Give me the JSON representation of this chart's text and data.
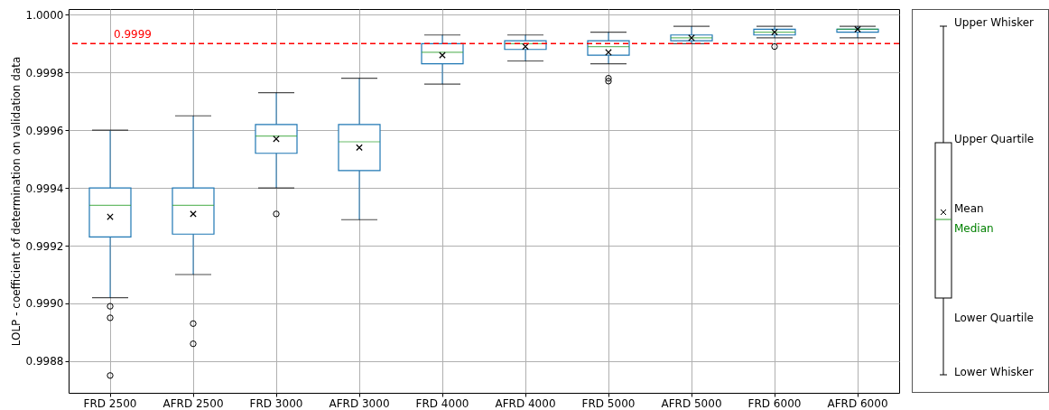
{
  "chart_data": {
    "type": "box",
    "ylabel": "LOLP - coefficient of determination on validation data",
    "categories": [
      "FRD 2500",
      "AFRD 2500",
      "FRD 3000",
      "AFRD 3000",
      "FRD 4000",
      "AFRD 4000",
      "FRD 5000",
      "AFRD 5000",
      "FRD 6000",
      "AFRD 6000"
    ],
    "series": [
      {
        "color": "#1f77b4",
        "boxes": [
          {
            "low": 0.99902,
            "q1": 0.99923,
            "median": 0.99934,
            "q3": 0.9994,
            "high": 0.9996,
            "mean": 0.9993,
            "outliers": [
              0.99899,
              0.99895,
              0.99875
            ]
          },
          {
            "low": 0.9991,
            "q1": 0.99924,
            "median": 0.99934,
            "q3": 0.9994,
            "high": 0.99965,
            "mean": 0.99931,
            "outliers": [
              0.99893,
              0.99886
            ]
          },
          {
            "low": 0.9994,
            "q1": 0.99952,
            "median": 0.99958,
            "q3": 0.99962,
            "high": 0.99973,
            "mean": 0.99957,
            "outliers": [
              0.99931
            ]
          },
          {
            "low": 0.99929,
            "q1": 0.99946,
            "median": 0.99956,
            "q3": 0.99962,
            "high": 0.99978,
            "mean": 0.99954
          },
          {
            "low": 0.99976,
            "q1": 0.99983,
            "median": 0.99987,
            "q3": 0.9999,
            "high": 0.99993,
            "mean": 0.99986
          },
          {
            "low": 0.99984,
            "q1": 0.99988,
            "median": 0.9999,
            "q3": 0.99991,
            "high": 0.99993,
            "mean": 0.99989
          },
          {
            "low": 0.99983,
            "q1": 0.99986,
            "median": 0.99989,
            "q3": 0.99991,
            "high": 0.99994,
            "mean": 0.99987,
            "outliers": [
              0.99978,
              0.99977
            ]
          },
          {
            "low": 0.9999,
            "q1": 0.99991,
            "median": 0.99992,
            "q3": 0.99993,
            "high": 0.99996,
            "mean": 0.99992
          },
          {
            "low": 0.99992,
            "q1": 0.99993,
            "median": 0.99994,
            "q3": 0.99995,
            "high": 0.99996,
            "mean": 0.99994,
            "outliers": [
              0.99989
            ]
          },
          {
            "low": 0.99992,
            "q1": 0.99994,
            "median": 0.99995,
            "q3": 0.99995,
            "high": 0.99996,
            "mean": 0.99995
          }
        ]
      }
    ],
    "ylim": [
      0.99869,
      1.00002
    ],
    "yticks": [
      0.9988,
      {
        "value": 0.999,
        "label": "0.9990"
      },
      0.9992,
      0.9994,
      0.9996,
      0.9998,
      {
        "value": 1,
        "label": "1.0000"
      }
    ],
    "ref_lines": [
      {
        "axis": "y",
        "value": 0.9999,
        "label": "0.9999",
        "color": "#ff0000",
        "line_style": "dashed"
      }
    ],
    "grid": true,
    "marker": "cross",
    "annotations": [
      "Upper Whisker",
      "Upper Quartile",
      "Mean",
      "Median",
      "Lower Quartile",
      "Lower Whisker"
    ]
  }
}
